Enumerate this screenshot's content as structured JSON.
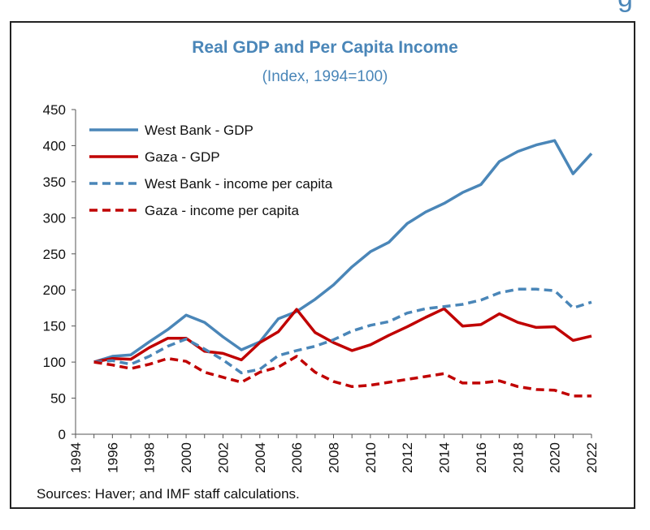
{
  "chart_data": {
    "type": "line",
    "title": "Real GDP and Per Capita Income",
    "subtitle": "(Index, 1994=100)",
    "source": "Sources: Haver; and IMF staff calculations.",
    "xlim": [
      1994,
      2022
    ],
    "ylim": [
      0,
      450
    ],
    "yticks": [
      0,
      50,
      100,
      150,
      200,
      250,
      300,
      350,
      400,
      450
    ],
    "xticks": [
      1994,
      1996,
      1998,
      2000,
      2002,
      2004,
      2006,
      2008,
      2010,
      2012,
      2014,
      2016,
      2018,
      2020,
      2022
    ],
    "grid": false,
    "legend_position": "top-left",
    "x": [
      1995,
      1996,
      1997,
      1998,
      1999,
      2000,
      2001,
      2002,
      2003,
      2004,
      2005,
      2006,
      2007,
      2008,
      2009,
      2010,
      2011,
      2012,
      2013,
      2014,
      2015,
      2016,
      2017,
      2018,
      2019,
      2020,
      2021,
      2022
    ],
    "series": [
      {
        "name": "West Bank - GDP",
        "color": "#4a86b8",
        "style": "solid",
        "values": [
          100,
          108,
          110,
          128,
          145,
          165,
          155,
          135,
          117,
          128,
          160,
          170,
          187,
          207,
          232,
          253,
          266,
          292,
          308,
          320,
          335,
          346,
          378,
          392,
          401,
          407,
          361,
          389
        ]
      },
      {
        "name": "Gaza - GDP",
        "color": "#c00000",
        "style": "solid",
        "values": [
          100,
          105,
          104,
          120,
          133,
          133,
          115,
          112,
          103,
          127,
          142,
          173,
          141,
          127,
          116,
          124,
          137,
          149,
          162,
          174,
          150,
          152,
          167,
          155,
          148,
          149,
          130,
          136
        ]
      },
      {
        "name": "West Bank - income per capita",
        "color": "#4a86b8",
        "style": "dashed",
        "values": [
          100,
          102,
          97,
          108,
          122,
          132,
          118,
          103,
          85,
          90,
          109,
          116,
          122,
          131,
          143,
          151,
          156,
          168,
          174,
          177,
          180,
          186,
          196,
          201,
          201,
          199,
          175,
          183
        ]
      },
      {
        "name": "Gaza - income per capita",
        "color": "#c00000",
        "style": "dashed",
        "values": [
          100,
          96,
          91,
          97,
          105,
          101,
          86,
          79,
          72,
          86,
          93,
          108,
          86,
          73,
          66,
          68,
          72,
          76,
          80,
          84,
          71,
          71,
          74,
          66,
          62,
          61,
          53,
          53
        ]
      }
    ]
  }
}
